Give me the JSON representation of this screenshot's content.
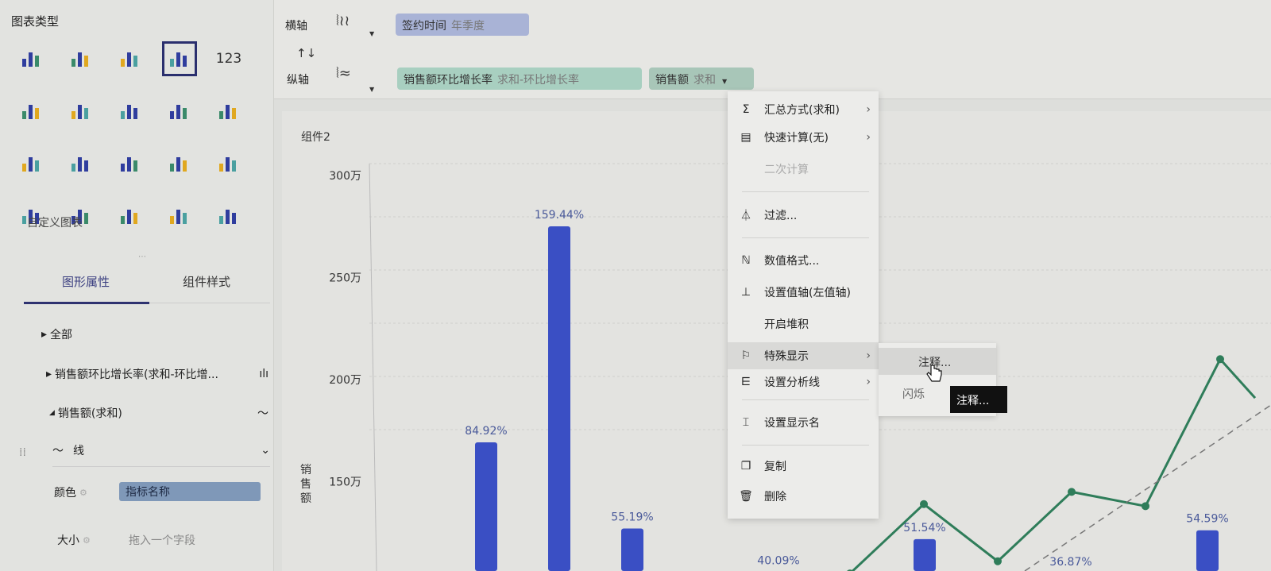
{
  "left_panel": {
    "chart_type_title": "图表类型",
    "chart_types": [
      {
        "icon": "grouped-table-icon"
      },
      {
        "icon": "cross-table-icon"
      },
      {
        "icon": "detail-table-icon"
      },
      {
        "icon": "custom-chart-icon",
        "selected": true
      },
      {
        "icon": "kpi-number-icon",
        "text": "123"
      },
      {
        "icon": "stacked-column-icon"
      },
      {
        "icon": "grouped-column-icon"
      },
      {
        "icon": "multi-series-column-icon"
      },
      {
        "icon": "bar-chart-icon"
      },
      {
        "icon": "range-column-icon"
      },
      {
        "icon": "line-chart-icon"
      },
      {
        "icon": "radar-chart-icon"
      },
      {
        "icon": "map-icon"
      },
      {
        "icon": "area-chart-icon"
      },
      {
        "icon": "gauge-icon"
      },
      {
        "icon": "pie-chart-icon"
      },
      {
        "icon": "rose-chart-icon"
      },
      {
        "icon": "globe-chart-icon"
      },
      {
        "icon": "scatter-chart-icon"
      },
      {
        "icon": "bubble-chart-icon"
      }
    ],
    "custom_chart_label": "自定义图表",
    "tabs": [
      "图形属性",
      "组件样式"
    ],
    "active_tab": 0,
    "tree": {
      "all": "全部",
      "bar_series": "销售额环比增长率(求和-环比增...",
      "line_series": "销售额(求和)",
      "mark_type": "线"
    },
    "props": {
      "color_label": "颜色",
      "color_value": "指标名称",
      "size_label": "大小",
      "size_placeholder": "拖入一个字段"
    }
  },
  "top_bar": {
    "x_axis_label": "横轴",
    "y_axis_label": "纵轴",
    "swap_icon": "↑↓",
    "x_field": {
      "name": "签约时间",
      "sub": "年季度"
    },
    "y_fields": [
      {
        "name": "销售额环比增长率",
        "sub": "求和-环比增长率"
      },
      {
        "name": "销售额",
        "sub": "求和"
      }
    ]
  },
  "component_title": "组件2",
  "context_menu": {
    "items": [
      {
        "label": "汇总方式(求和)",
        "icon": "sigma-icon",
        "submenu": true
      },
      {
        "label": "快速计算(无)",
        "icon": "calculator-icon",
        "submenu": true
      },
      {
        "label": "二次计算",
        "disabled": true
      },
      {
        "label": "过滤...",
        "icon": "filter-icon"
      },
      {
        "label": "数值格式...",
        "icon": "number-format-icon"
      },
      {
        "label": "设置值轴(左值轴)",
        "icon": "value-axis-icon"
      },
      {
        "label": "开启堆积"
      },
      {
        "label": "特殊显示",
        "icon": "flag-icon",
        "submenu": true,
        "highlighted": true
      },
      {
        "label": "设置分析线",
        "icon": "analysis-line-icon",
        "submenu": true
      },
      {
        "label": "设置显示名",
        "icon": "rename-icon"
      },
      {
        "label": "复制",
        "icon": "copy-icon"
      },
      {
        "label": "删除",
        "icon": "trash-icon"
      }
    ],
    "submenu": [
      "注释...",
      "闪烁"
    ],
    "tooltip": "注释..."
  },
  "chart_data": {
    "type": "bar+line",
    "ylabel": "销售额",
    "y_ticks": [
      "300万",
      "250万",
      "200万",
      "150万"
    ],
    "ylim_left_wan": [
      130,
      300
    ],
    "grid": true,
    "bar_series": {
      "values_percent": [
        84.92,
        159.44,
        55.19,
        null,
        40.09,
        null,
        51.54,
        null,
        36.87,
        null,
        54.59
      ],
      "labels": [
        "84.92%",
        "159.44%",
        "55.19%",
        "",
        "40.09%",
        "",
        "51.54%",
        "",
        "36.87%",
        "",
        ""
      ],
      "last_label": "54.59%",
      "color": "#3a4fc4"
    },
    "line_series": {
      "values_wan": [
        null,
        null,
        null,
        null,
        null,
        105,
        139,
        111,
        145,
        138,
        210,
        191
      ],
      "color": "#2f7d5a"
    },
    "trend_line": {
      "style": "dashed",
      "color": "#777777"
    }
  }
}
